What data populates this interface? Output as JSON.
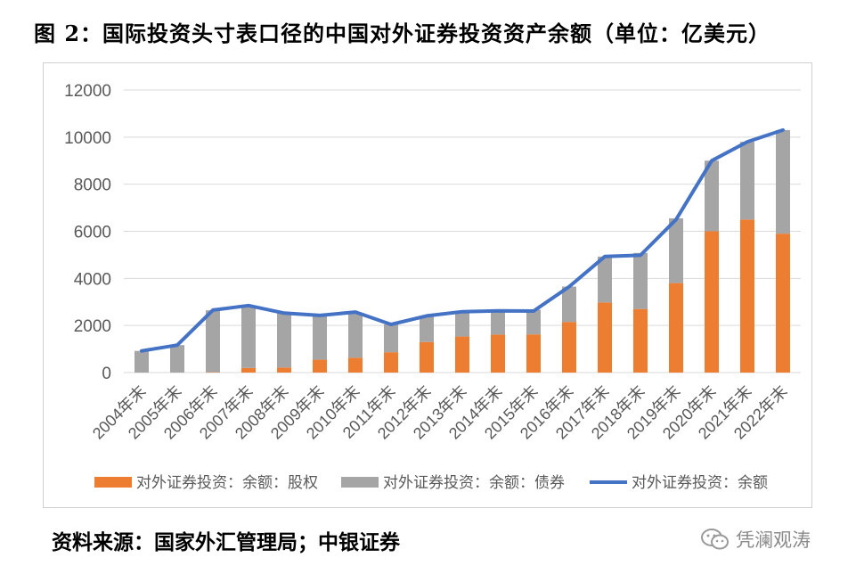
{
  "title": "图 2：国际投资头寸表口径的中国对外证券投资资产余额（单位：亿美元）",
  "source": "资料来源：国家外汇管理局；中银证券",
  "watermark": "凭澜观涛",
  "watermark_icon": "wechat-icon",
  "colors": {
    "equity": "#ED7D31",
    "debt": "#A5A5A5",
    "total": "#4472C4",
    "grid": "#D9D9D9",
    "axis_text": "#595959"
  },
  "chart_data": {
    "type": "bar",
    "stacked": true,
    "categories": [
      "2004年末",
      "2005年末",
      "2006年末",
      "2007年末",
      "2008年末",
      "2009年末",
      "2010年末",
      "2011年末",
      "2012年末",
      "2013年末",
      "2014年末",
      "2015年末",
      "2016年末",
      "2017年末",
      "2018年末",
      "2019年末",
      "2020年末",
      "2021年末",
      "2022年末"
    ],
    "series": [
      {
        "name": "对外证券投资：余额：股权",
        "type": "bar",
        "values": [
          0,
          0,
          15,
          196,
          214,
          546,
          630,
          864,
          1298,
          1530,
          1613,
          1621,
          2151,
          2977,
          2700,
          3800,
          6000,
          6500,
          5900
        ]
      },
      {
        "name": "对外证券投资：余额：债券",
        "type": "bar",
        "values": [
          920,
          1167,
          2630,
          2650,
          2300,
          1900,
          1900,
          1180,
          1100,
          1050,
          1030,
          1050,
          1500,
          1950,
          2380,
          2750,
          3000,
          3300,
          4400
        ]
      },
      {
        "name": "对外证券投资：余额",
        "type": "line",
        "values": [
          920,
          1167,
          2652,
          2846,
          2525,
          2428,
          2571,
          2044,
          2406,
          2585,
          2625,
          2613,
          3651,
          4927,
          4980,
          6500,
          9000,
          9800,
          10300
        ]
      }
    ],
    "ylim": [
      0,
      12000
    ],
    "yticks": [
      0,
      2000,
      4000,
      6000,
      8000,
      10000,
      12000
    ],
    "grid": true,
    "legend_position": "bottom"
  }
}
